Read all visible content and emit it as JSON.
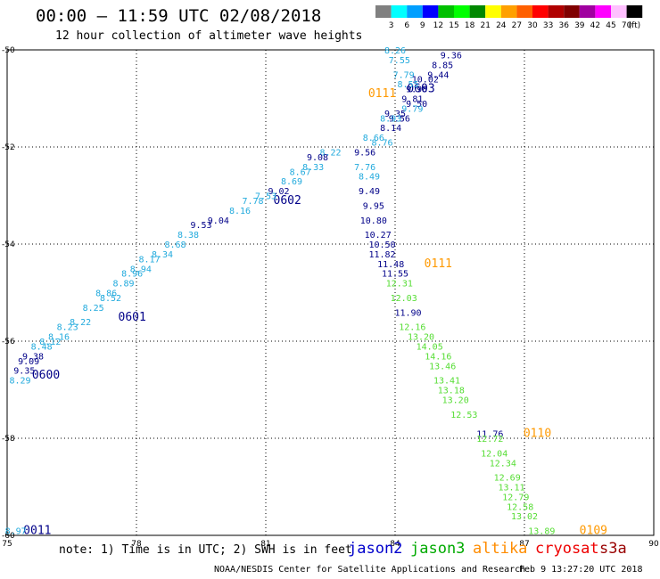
{
  "header": {
    "title": "00:00 – 11:59 UTC 02/08/2018",
    "subtitle": "12 hour collection of altimeter wave heights"
  },
  "colorbar": {
    "colors": [
      "#808080",
      "#00ffff",
      "#009fff",
      "#0000ff",
      "#00c000",
      "#00ff00",
      "#008800",
      "#ffff00",
      "#ffa000",
      "#ff6000",
      "#ff0000",
      "#b00000",
      "#800000",
      "#a000a0",
      "#ff00ff",
      "#ffc0ff",
      "#000000"
    ],
    "labels": [
      "3",
      "6",
      "9",
      "12",
      "15",
      "18",
      "21",
      "24",
      "27",
      "30",
      "33",
      "36",
      "39",
      "42",
      "45",
      "70",
      "(ft)"
    ]
  },
  "footer": {
    "note": "note: 1) Time is in UTC; 2) SWH is in feet",
    "legend": [
      {
        "name": "jason2",
        "color": "#0000cc"
      },
      {
        "name": "jason3",
        "color": "#00aa00"
      },
      {
        "name": "altika",
        "color": "#ff8c00"
      },
      {
        "name": "cryosat",
        "color": "#ee0000"
      },
      {
        "name": "s3a",
        "color": "#990000"
      }
    ],
    "credit": "NOAA/NESDIS Center for Satellite Applications and Research",
    "timestamp": "Feb  9 13:27:20 UTC 2018"
  },
  "chart_data": {
    "type": "scatter",
    "xlim": [
      75,
      90
    ],
    "ylim": [
      -60,
      -50
    ],
    "x_ticks": [
      "75",
      "78",
      "81",
      "84",
      "87",
      "90"
    ],
    "y_ticks": [
      "-50",
      "-52",
      "-54",
      "-56",
      "-58",
      "-60"
    ],
    "colors": {
      "c": "#22aadd",
      "b": "#000088",
      "g": "#55dd33",
      "o": "#ff9900"
    },
    "labels": [
      [
        "0603",
        84.6,
        -50.8,
        "b"
      ],
      [
        "0602",
        81.5,
        -53.1,
        "b"
      ],
      [
        "0601",
        77.9,
        -55.5,
        "b"
      ],
      [
        "0600",
        75.9,
        -56.7,
        "b"
      ],
      [
        "0011",
        75.7,
        -59.9,
        "b"
      ],
      [
        "0111",
        83.7,
        -50.9,
        "o"
      ],
      [
        "0111",
        85.0,
        -54.4,
        "o"
      ],
      [
        "0110",
        87.3,
        -57.9,
        "o"
      ],
      [
        "0109",
        88.6,
        -59.9,
        "o"
      ],
      [
        "8.26",
        84.0,
        -50.0,
        "c"
      ],
      [
        "9.36",
        85.3,
        -50.1,
        "b"
      ],
      [
        "8.85",
        85.1,
        -50.3,
        "b"
      ],
      [
        "7.55",
        84.1,
        -50.2,
        "c"
      ],
      [
        "9.44",
        85.0,
        -50.5,
        "b"
      ],
      [
        "7.79",
        84.2,
        -50.5,
        "c"
      ],
      [
        "10.02",
        84.7,
        -50.6,
        "b"
      ],
      [
        "8.55",
        84.3,
        -50.7,
        "c"
      ],
      [
        "9.98",
        84.5,
        -50.8,
        "b"
      ],
      [
        "9.81",
        84.4,
        -51.0,
        "b"
      ],
      [
        "9.50",
        84.5,
        -51.1,
        "b"
      ],
      [
        "9.79",
        84.4,
        -51.2,
        "c"
      ],
      [
        "9.35",
        84.0,
        -51.3,
        "b"
      ],
      [
        "9.56",
        84.1,
        -51.4,
        "b"
      ],
      [
        "8.93",
        83.9,
        -51.4,
        "c"
      ],
      [
        "8.14",
        83.9,
        -51.6,
        "b"
      ],
      [
        "8.66",
        83.5,
        -51.8,
        "c"
      ],
      [
        "8.76",
        83.7,
        -51.9,
        "c"
      ],
      [
        "8.22",
        82.5,
        -52.1,
        "c"
      ],
      [
        "9.56",
        83.3,
        -52.1,
        "b"
      ],
      [
        "9.08",
        82.2,
        -52.2,
        "b"
      ],
      [
        "7.76",
        83.3,
        -52.4,
        "c"
      ],
      [
        "8.33",
        82.1,
        -52.4,
        "c"
      ],
      [
        "8.67",
        81.8,
        -52.5,
        "c"
      ],
      [
        "8.49",
        83.4,
        -52.6,
        "c"
      ],
      [
        "8.69",
        81.6,
        -52.7,
        "c"
      ],
      [
        "9.02",
        81.3,
        -52.9,
        "b"
      ],
      [
        "9.49",
        83.4,
        -52.9,
        "b"
      ],
      [
        "7.53",
        81.0,
        -53.0,
        "c"
      ],
      [
        "9.95",
        83.5,
        -53.2,
        "b"
      ],
      [
        "7.78",
        80.7,
        -53.1,
        "c"
      ],
      [
        "8.16",
        80.4,
        -53.3,
        "c"
      ],
      [
        "10.80",
        83.5,
        -53.5,
        "b"
      ],
      [
        "9.04",
        79.9,
        -53.5,
        "b"
      ],
      [
        "10.27",
        83.6,
        -53.8,
        "b"
      ],
      [
        "9.53",
        79.5,
        -53.6,
        "b"
      ],
      [
        "8.38",
        79.2,
        -53.8,
        "c"
      ],
      [
        "10.50",
        83.7,
        -54.0,
        "b"
      ],
      [
        "8.68",
        78.9,
        -54.0,
        "c"
      ],
      [
        "11.82",
        83.7,
        -54.2,
        "b"
      ],
      [
        "8.34",
        78.6,
        -54.2,
        "c"
      ],
      [
        "8.17",
        78.3,
        -54.3,
        "c"
      ],
      [
        "11.48",
        83.9,
        -54.4,
        "b"
      ],
      [
        "8.94",
        78.1,
        -54.5,
        "c"
      ],
      [
        "11.55",
        84.0,
        -54.6,
        "b"
      ],
      [
        "8.96",
        77.9,
        -54.6,
        "c"
      ],
      [
        "8.89",
        77.7,
        -54.8,
        "c"
      ],
      [
        "12.31",
        84.1,
        -54.8,
        "g"
      ],
      [
        "8.52",
        77.4,
        -55.1,
        "c"
      ],
      [
        "8.86",
        77.3,
        -55.0,
        "c"
      ],
      [
        "12.03",
        84.2,
        -55.1,
        "g"
      ],
      [
        "8.25",
        77.0,
        -55.3,
        "c"
      ],
      [
        "8.22",
        76.7,
        -55.6,
        "c"
      ],
      [
        "11.90",
        84.3,
        -55.4,
        "b"
      ],
      [
        "8.23",
        76.4,
        -55.7,
        "c"
      ],
      [
        "12.16",
        84.4,
        -55.7,
        "g"
      ],
      [
        "8.16",
        76.2,
        -55.9,
        "c"
      ],
      [
        "13.20",
        84.6,
        -55.9,
        "g"
      ],
      [
        "8.12",
        76.0,
        -56.0,
        "c"
      ],
      [
        "8.48",
        75.8,
        -56.1,
        "c"
      ],
      [
        "14.05",
        84.8,
        -56.1,
        "g"
      ],
      [
        "9.38",
        75.6,
        -56.3,
        "b"
      ],
      [
        "14.16",
        85.0,
        -56.3,
        "g"
      ],
      [
        "9.09",
        75.5,
        -56.4,
        "b"
      ],
      [
        "9.35",
        75.4,
        -56.6,
        "b"
      ],
      [
        "13.46",
        85.1,
        -56.5,
        "g"
      ],
      [
        "8.29",
        75.3,
        -56.8,
        "c"
      ],
      [
        "13.41",
        85.2,
        -56.8,
        "g"
      ],
      [
        "13.18",
        85.3,
        -57.0,
        "g"
      ],
      [
        "13.20",
        85.4,
        -57.2,
        "g"
      ],
      [
        "12.53",
        85.6,
        -57.5,
        "g"
      ],
      [
        "11.76",
        86.2,
        -57.9,
        "b"
      ],
      [
        "12.72",
        86.2,
        -58.0,
        "g"
      ],
      [
        "12.04",
        86.3,
        -58.3,
        "g"
      ],
      [
        "12.34",
        86.5,
        -58.5,
        "g"
      ],
      [
        "12.69",
        86.6,
        -58.8,
        "g"
      ],
      [
        "13.11",
        86.7,
        -59.0,
        "g"
      ],
      [
        "12.79",
        86.8,
        -59.2,
        "g"
      ],
      [
        "12.58",
        86.9,
        -59.4,
        "g"
      ],
      [
        "13.02",
        87.0,
        -59.6,
        "g"
      ],
      [
        "13.89",
        87.4,
        -59.9,
        "g"
      ],
      [
        "8.97",
        75.2,
        -59.9,
        "c"
      ]
    ]
  }
}
